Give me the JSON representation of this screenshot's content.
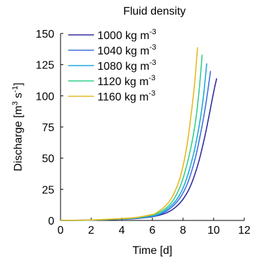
{
  "chart_data": {
    "type": "line",
    "title": "",
    "legend_title": "Fluid density",
    "legend_position": "top-left",
    "xlabel": "Time [d]",
    "ylabel": {
      "main": "Discharge [m",
      "sup1": "3",
      "mid": " s",
      "sup2": "-1",
      "end": "]"
    },
    "xlim": [
      0,
      12
    ],
    "ylim": [
      0,
      150
    ],
    "xticks": [
      "0",
      "2",
      "4",
      "6",
      "8",
      "10",
      "12"
    ],
    "yticks": [
      "0",
      "25",
      "50",
      "75",
      "100",
      "125",
      "150"
    ],
    "grid": false,
    "series": [
      {
        "name": "1000 kg m",
        "name_sup": "-3",
        "color": "#2e2a9c",
        "x": [
          0,
          2,
          4,
          5,
          6,
          6.8,
          7.4,
          8.0,
          8.5,
          9.0,
          9.4,
          9.7,
          10.0,
          10.2
        ],
        "y": [
          0,
          0.3,
          1.0,
          1.6,
          3.0,
          5.5,
          9.5,
          17,
          28,
          46,
          66,
          84,
          103,
          114
        ]
      },
      {
        "name": "1040 kg m",
        "name_sup": "-3",
        "color": "#3d6fe0",
        "x": [
          0,
          2,
          4,
          5,
          6,
          6.6,
          7.2,
          7.8,
          8.3,
          8.8,
          9.2,
          9.5,
          9.8
        ],
        "y": [
          0,
          0.3,
          1.1,
          1.8,
          3.3,
          5.5,
          10,
          18,
          30,
          50,
          73,
          94,
          120
        ]
      },
      {
        "name": "1080 kg m",
        "name_sup": "-3",
        "color": "#1fa8d8",
        "x": [
          0,
          2,
          4,
          5,
          6,
          6.4,
          7.0,
          7.6,
          8.1,
          8.6,
          9.0,
          9.3,
          9.55
        ],
        "y": [
          0,
          0.3,
          1.2,
          2.0,
          3.8,
          5.0,
          9.5,
          17,
          29,
          49,
          72,
          96,
          126
        ]
      },
      {
        "name": "1120 kg m",
        "name_sup": "-3",
        "color": "#2fd08a",
        "x": [
          0,
          2,
          4,
          5,
          6,
          6.3,
          6.9,
          7.4,
          7.9,
          8.4,
          8.8,
          9.05,
          9.25
        ],
        "y": [
          0,
          0.3,
          1.3,
          2.2,
          4.2,
          5.5,
          10,
          17,
          30,
          52,
          78,
          104,
          133
        ]
      },
      {
        "name": "1160 kg m",
        "name_sup": "-3",
        "color": "#e6b820",
        "x": [
          0,
          2,
          4,
          5,
          6,
          6.2,
          6.8,
          7.3,
          7.8,
          8.2,
          8.5,
          8.75,
          8.95
        ],
        "y": [
          0,
          0.4,
          1.5,
          2.5,
          4.8,
          5.7,
          11,
          19,
          34,
          56,
          82,
          109,
          139
        ]
      }
    ]
  }
}
